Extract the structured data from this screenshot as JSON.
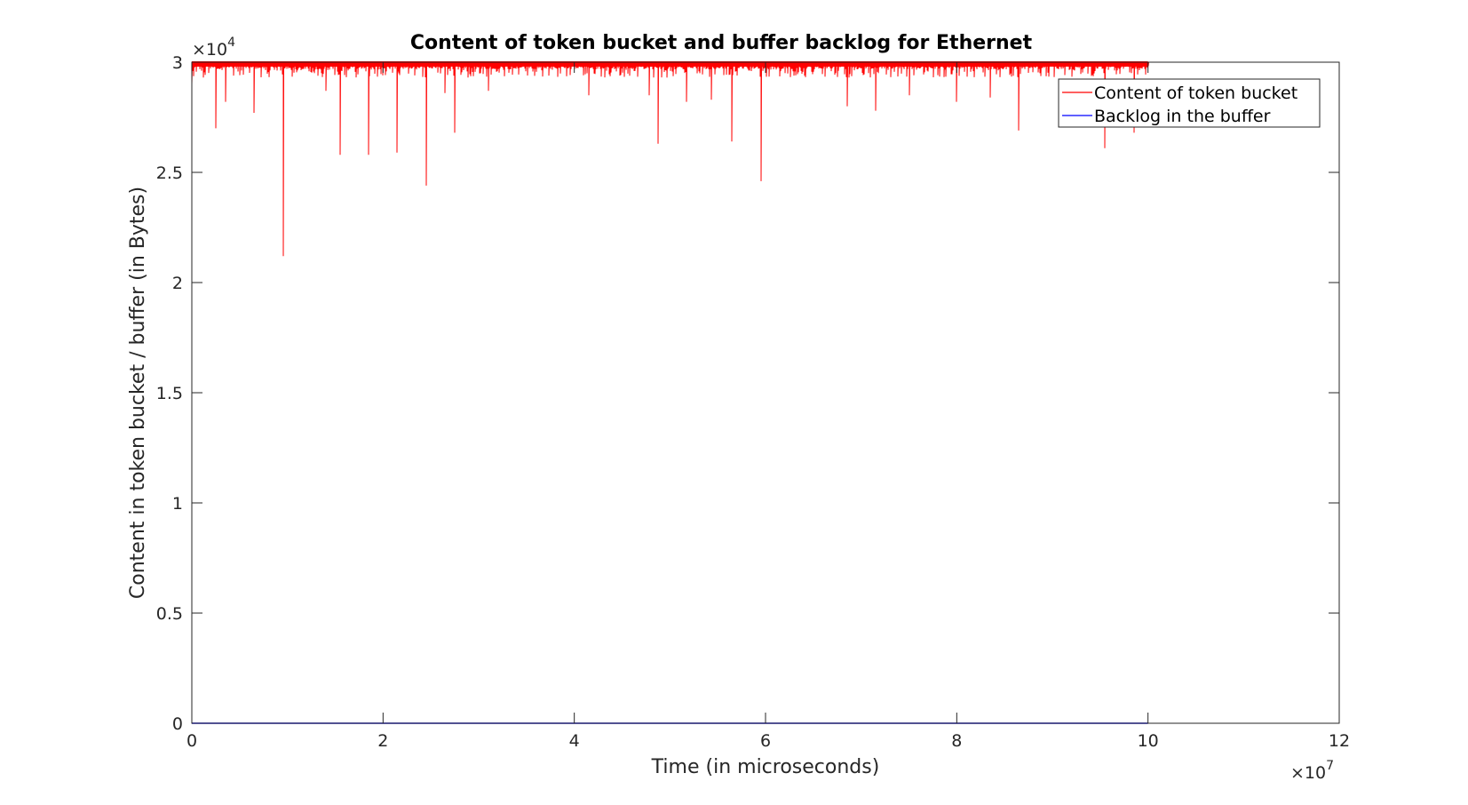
{
  "chart_data": {
    "type": "line",
    "title": "Content of token bucket and buffer backlog for Ethernet",
    "xlabel": "Time (in microseconds)",
    "ylabel": "Content in token bucket / buffer (in Bytes)",
    "xlim": [
      0,
      120000000
    ],
    "ylim": [
      0,
      30000
    ],
    "x_ticks": [
      0,
      20000000,
      40000000,
      60000000,
      80000000,
      100000000,
      120000000
    ],
    "x_tick_labels": [
      "0",
      "2",
      "4",
      "6",
      "8",
      "10",
      "12"
    ],
    "y_ticks": [
      0,
      5000,
      10000,
      15000,
      20000,
      25000,
      30000
    ],
    "y_tick_labels": [
      "0",
      "0.5",
      "1",
      "1.5",
      "2",
      "2.5",
      "3"
    ],
    "x_exponent": {
      "base": "×10",
      "power": "7"
    },
    "y_exponent": {
      "base": "×10",
      "power": "4"
    },
    "legend_placement": "top-right",
    "grid": false,
    "series": [
      {
        "name": "Content of token bucket",
        "color": "#ff0000",
        "x_range": [
          0,
          100000000
        ],
        "baseline_band": [
          29300,
          30000
        ],
        "dips": [
          {
            "x": 0,
            "y": 29000
          },
          {
            "x": 2500000,
            "y": 27000
          },
          {
            "x": 3500000,
            "y": 28200
          },
          {
            "x": 6500000,
            "y": 27700
          },
          {
            "x": 9600000,
            "y": 21200
          },
          {
            "x": 14000000,
            "y": 28700
          },
          {
            "x": 15500000,
            "y": 25800
          },
          {
            "x": 18500000,
            "y": 25800
          },
          {
            "x": 21500000,
            "y": 25900
          },
          {
            "x": 24500000,
            "y": 24400
          },
          {
            "x": 26500000,
            "y": 28600
          },
          {
            "x": 27500000,
            "y": 26800
          },
          {
            "x": 31000000,
            "y": 28700
          },
          {
            "x": 41500000,
            "y": 28500
          },
          {
            "x": 47800000,
            "y": 28500
          },
          {
            "x": 48800000,
            "y": 26300
          },
          {
            "x": 51700000,
            "y": 28200
          },
          {
            "x": 54300000,
            "y": 28300
          },
          {
            "x": 56500000,
            "y": 26400
          },
          {
            "x": 59500000,
            "y": 24600
          },
          {
            "x": 68500000,
            "y": 28000
          },
          {
            "x": 71500000,
            "y": 27800
          },
          {
            "x": 75000000,
            "y": 28500
          },
          {
            "x": 80000000,
            "y": 28200
          },
          {
            "x": 83500000,
            "y": 28400
          },
          {
            "x": 86500000,
            "y": 26900
          },
          {
            "x": 95500000,
            "y": 26100
          },
          {
            "x": 98500000,
            "y": 26800
          }
        ]
      },
      {
        "name": "Backlog in the buffer",
        "color": "#0000ff",
        "x": [
          0,
          100000000
        ],
        "y": [
          0,
          0
        ]
      }
    ]
  }
}
